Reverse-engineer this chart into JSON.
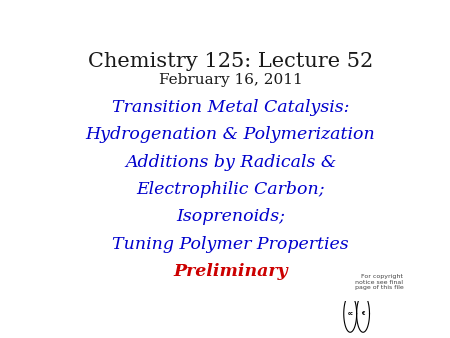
{
  "title_line1": "Chemistry 125: Lecture 52",
  "title_line2": "February 16, 2011",
  "title_color": "#1a1a1a",
  "title_fontsize": 15,
  "subtitle_fontsize": 11,
  "body_lines": [
    "Transition Metal Catalysis:",
    "Hydrogenation & Polymerization",
    "Additions by Radicals &",
    "Electrophilic Carbon;",
    "Isoprenoids;",
    "Tuning Polymer Properties"
  ],
  "body_color": "#0000cc",
  "body_fontsize": 12.5,
  "preliminary_text": "Preliminary",
  "preliminary_color": "#cc0000",
  "preliminary_fontsize": 12.5,
  "background_color": "#ffffff",
  "copyright_text": "For copyright\nnotice see final\npage of this file",
  "copyright_fontsize": 4.5
}
